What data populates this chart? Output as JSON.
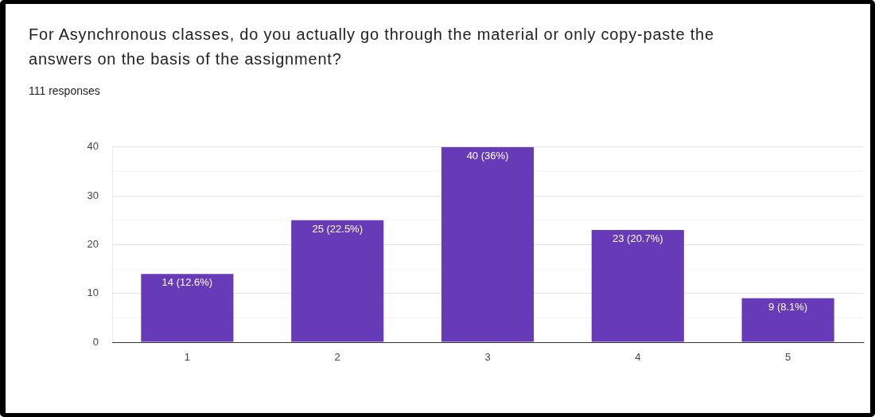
{
  "chart_data": {
    "type": "bar",
    "title": "For Asynchronous classes, do you actually go through the material or only copy-paste the answers on the basis of the assignment?",
    "subtitle": "111 responses",
    "categories": [
      "1",
      "2",
      "3",
      "4",
      "5"
    ],
    "values": [
      14,
      25,
      40,
      23,
      9
    ],
    "value_labels": [
      "14 (12.6%)",
      "25 (22.5%)",
      "40 (36%)",
      "23 (20.7%)",
      "9 (8.1%)"
    ],
    "color": "#673ab7",
    "ylim": [
      0,
      40
    ],
    "yticks": [
      0,
      {
        "value": 5,
        "label": null
      },
      10,
      {
        "value": 15,
        "label": null
      },
      20,
      {
        "value": 25,
        "label": null
      },
      30,
      {
        "value": 35,
        "label": null
      },
      40
    ],
    "grid": "y"
  }
}
